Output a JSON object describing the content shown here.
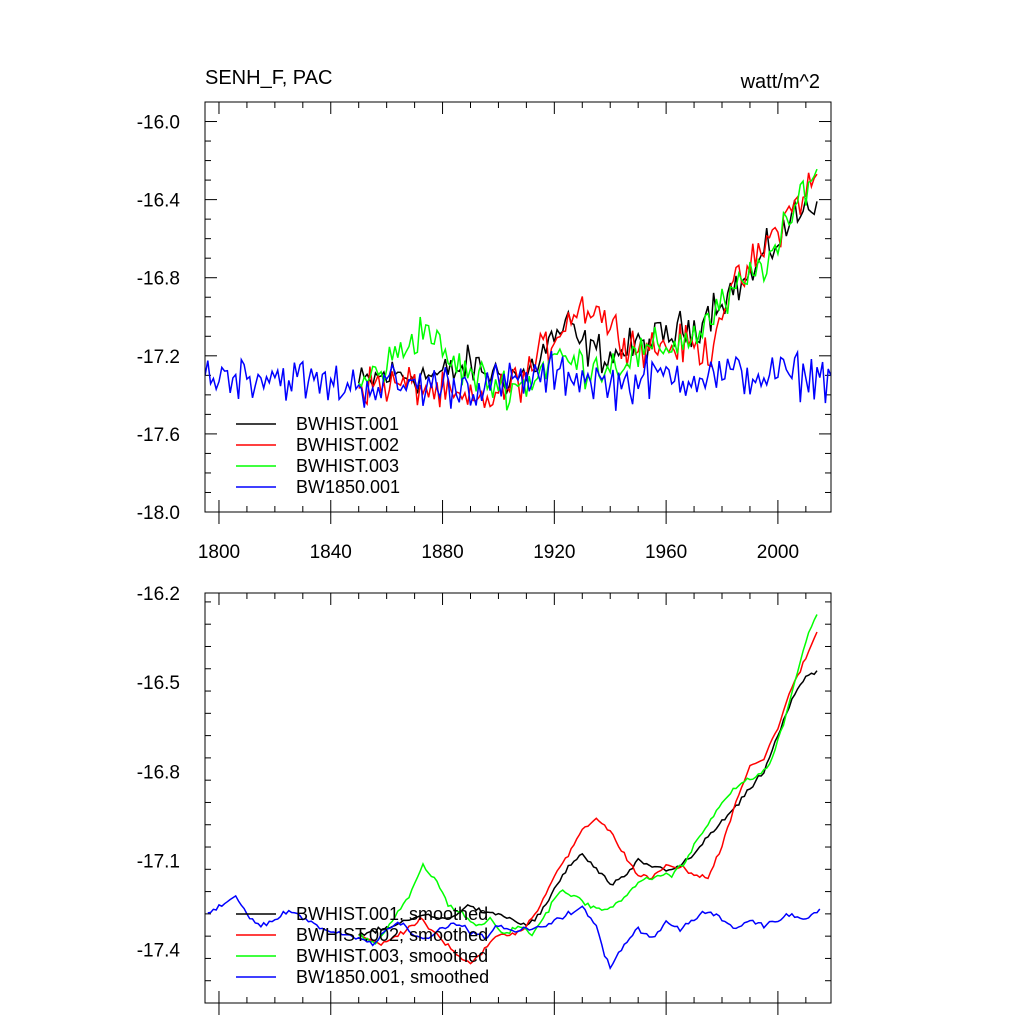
{
  "chart_data": [
    {
      "type": "line",
      "title": "SENH_F, PAC",
      "unit_label": "watt/m^2",
      "xlim": [
        1795,
        2019
      ],
      "ylim": [
        -18.0,
        -15.9
      ],
      "x_ticks": [
        1800,
        1840,
        1880,
        1920,
        1960,
        2000
      ],
      "y_ticks": [
        -16.0,
        -16.4,
        -16.8,
        -17.2,
        -17.6,
        -18.0
      ],
      "y_tick_labels": [
        "-16.0",
        "-16.4",
        "-16.8",
        "-17.2",
        "-17.6",
        "-18.0"
      ],
      "x_tick_labels": [
        "1800",
        "1840",
        "1880",
        "1920",
        "1960",
        "2000"
      ],
      "legend_position": "bottom-left",
      "series": [
        {
          "name": "BWHIST.001",
          "color": "#000000",
          "x_range": [
            1850,
            2014
          ],
          "points": [
            [
              1850,
              -17.35
            ],
            [
              1860,
              -17.3
            ],
            [
              1870,
              -17.3
            ],
            [
              1880,
              -17.3
            ],
            [
              1890,
              -17.25
            ],
            [
              1900,
              -17.3
            ],
            [
              1910,
              -17.3
            ],
            [
              1920,
              -17.1
            ],
            [
              1925,
              -17.05
            ],
            [
              1930,
              -17.15
            ],
            [
              1940,
              -17.2
            ],
            [
              1950,
              -17.15
            ],
            [
              1960,
              -17.1
            ],
            [
              1970,
              -17.05
            ],
            [
              1980,
              -16.9
            ],
            [
              1990,
              -16.8
            ],
            [
              2000,
              -16.6
            ],
            [
              2005,
              -16.5
            ],
            [
              2010,
              -16.45
            ],
            [
              2014,
              -16.4
            ]
          ]
        },
        {
          "name": "BWHIST.002",
          "color": "#ff0000",
          "x_range": [
            1850,
            2014
          ],
          "points": [
            [
              1850,
              -17.35
            ],
            [
              1860,
              -17.35
            ],
            [
              1870,
              -17.35
            ],
            [
              1880,
              -17.4
            ],
            [
              1890,
              -17.45
            ],
            [
              1900,
              -17.4
            ],
            [
              1910,
              -17.3
            ],
            [
              1920,
              -17.1
            ],
            [
              1925,
              -17.0
            ],
            [
              1930,
              -16.95
            ],
            [
              1935,
              -16.95
            ],
            [
              1940,
              -17.05
            ],
            [
              1950,
              -17.15
            ],
            [
              1960,
              -17.15
            ],
            [
              1970,
              -17.15
            ],
            [
              1975,
              -17.2
            ],
            [
              1980,
              -16.95
            ],
            [
              1990,
              -16.75
            ],
            [
              2000,
              -16.55
            ],
            [
              2005,
              -16.45
            ],
            [
              2010,
              -16.35
            ],
            [
              2014,
              -16.3
            ]
          ]
        },
        {
          "name": "BWHIST.003",
          "color": "#00ff00",
          "x_range": [
            1850,
            2014
          ],
          "points": [
            [
              1850,
              -17.35
            ],
            [
              1860,
              -17.25
            ],
            [
              1870,
              -17.1
            ],
            [
              1875,
              -17.05
            ],
            [
              1880,
              -17.2
            ],
            [
              1890,
              -17.3
            ],
            [
              1900,
              -17.35
            ],
            [
              1910,
              -17.35
            ],
            [
              1920,
              -17.2
            ],
            [
              1930,
              -17.25
            ],
            [
              1940,
              -17.25
            ],
            [
              1950,
              -17.2
            ],
            [
              1960,
              -17.15
            ],
            [
              1970,
              -17.1
            ],
            [
              1980,
              -16.95
            ],
            [
              1990,
              -16.8
            ],
            [
              2000,
              -16.65
            ],
            [
              2005,
              -16.5
            ],
            [
              2010,
              -16.3
            ],
            [
              2014,
              -16.25
            ]
          ]
        },
        {
          "name": "BW1850.001",
          "color": "#0000ff",
          "x_range": [
            1795,
            2019
          ],
          "points": [
            [
              1795,
              -17.3
            ],
            [
              1820,
              -17.3
            ],
            [
              1840,
              -17.35
            ],
            [
              1860,
              -17.35
            ],
            [
              1880,
              -17.35
            ],
            [
              1900,
              -17.35
            ],
            [
              1920,
              -17.3
            ],
            [
              1930,
              -17.3
            ],
            [
              1940,
              -17.35
            ],
            [
              1960,
              -17.3
            ],
            [
              1980,
              -17.3
            ],
            [
              2000,
              -17.3
            ],
            [
              2019,
              -17.3
            ]
          ]
        }
      ]
    },
    {
      "type": "line",
      "xlim": [
        1795,
        2019
      ],
      "ylim": [
        -17.58,
        -16.2
      ],
      "x_ticks": [
        1800,
        1840,
        1880,
        1920,
        1960,
        2000
      ],
      "y_ticks": [
        -16.2,
        -16.5,
        -16.8,
        -17.1,
        -17.4
      ],
      "y_tick_labels": [
        "-16.2",
        "-16.5",
        "-16.8",
        "-17.1",
        "-17.4"
      ],
      "legend_position": "bottom-left",
      "series": [
        {
          "name": "BWHIST.001, smoothed",
          "color": "#000000",
          "points": [
            [
              1850,
              -17.35
            ],
            [
              1860,
              -17.33
            ],
            [
              1868,
              -17.3
            ],
            [
              1875,
              -17.28
            ],
            [
              1880,
              -17.3
            ],
            [
              1885,
              -17.28
            ],
            [
              1890,
              -17.25
            ],
            [
              1895,
              -17.28
            ],
            [
              1900,
              -17.28
            ],
            [
              1905,
              -17.3
            ],
            [
              1910,
              -17.32
            ],
            [
              1915,
              -17.28
            ],
            [
              1920,
              -17.2
            ],
            [
              1925,
              -17.12
            ],
            [
              1930,
              -17.08
            ],
            [
              1935,
              -17.13
            ],
            [
              1940,
              -17.18
            ],
            [
              1945,
              -17.16
            ],
            [
              1950,
              -17.1
            ],
            [
              1955,
              -17.12
            ],
            [
              1960,
              -17.13
            ],
            [
              1965,
              -17.12
            ],
            [
              1970,
              -17.08
            ],
            [
              1975,
              -17.02
            ],
            [
              1980,
              -16.97
            ],
            [
              1985,
              -16.92
            ],
            [
              1990,
              -16.86
            ],
            [
              1995,
              -16.8
            ],
            [
              2000,
              -16.68
            ],
            [
              2005,
              -16.56
            ],
            [
              2010,
              -16.48
            ],
            [
              2014,
              -16.47
            ]
          ]
        },
        {
          "name": "BWHIST.002, smoothed",
          "color": "#ff0000",
          "points": [
            [
              1850,
              -17.35
            ],
            [
              1858,
              -17.38
            ],
            [
              1865,
              -17.35
            ],
            [
              1872,
              -17.3
            ],
            [
              1878,
              -17.35
            ],
            [
              1885,
              -17.42
            ],
            [
              1890,
              -17.45
            ],
            [
              1895,
              -17.4
            ],
            [
              1900,
              -17.35
            ],
            [
              1905,
              -17.35
            ],
            [
              1910,
              -17.32
            ],
            [
              1915,
              -17.25
            ],
            [
              1920,
              -17.15
            ],
            [
              1925,
              -17.08
            ],
            [
              1930,
              -17.0
            ],
            [
              1935,
              -16.96
            ],
            [
              1940,
              -17.0
            ],
            [
              1945,
              -17.08
            ],
            [
              1950,
              -17.15
            ],
            [
              1955,
              -17.16
            ],
            [
              1960,
              -17.12
            ],
            [
              1965,
              -17.12
            ],
            [
              1970,
              -17.15
            ],
            [
              1975,
              -17.16
            ],
            [
              1980,
              -17.05
            ],
            [
              1985,
              -16.9
            ],
            [
              1990,
              -16.78
            ],
            [
              1995,
              -16.76
            ],
            [
              2000,
              -16.65
            ],
            [
              2005,
              -16.52
            ],
            [
              2010,
              -16.42
            ],
            [
              2014,
              -16.33
            ]
          ]
        },
        {
          "name": "BWHIST.003, smoothed",
          "color": "#00ff00",
          "points": [
            [
              1850,
              -17.35
            ],
            [
              1856,
              -17.38
            ],
            [
              1862,
              -17.3
            ],
            [
              1868,
              -17.22
            ],
            [
              1873,
              -17.12
            ],
            [
              1878,
              -17.17
            ],
            [
              1882,
              -17.25
            ],
            [
              1887,
              -17.28
            ],
            [
              1892,
              -17.32
            ],
            [
              1897,
              -17.3
            ],
            [
              1902,
              -17.35
            ],
            [
              1907,
              -17.32
            ],
            [
              1912,
              -17.35
            ],
            [
              1917,
              -17.28
            ],
            [
              1922,
              -17.2
            ],
            [
              1927,
              -17.22
            ],
            [
              1932,
              -17.25
            ],
            [
              1937,
              -17.27
            ],
            [
              1942,
              -17.25
            ],
            [
              1947,
              -17.2
            ],
            [
              1952,
              -17.17
            ],
            [
              1957,
              -17.15
            ],
            [
              1962,
              -17.15
            ],
            [
              1967,
              -17.1
            ],
            [
              1972,
              -17.02
            ],
            [
              1977,
              -16.95
            ],
            [
              1982,
              -16.88
            ],
            [
              1987,
              -16.84
            ],
            [
              1992,
              -16.82
            ],
            [
              1997,
              -16.78
            ],
            [
              2002,
              -16.64
            ],
            [
              2007,
              -16.47
            ],
            [
              2011,
              -16.33
            ],
            [
              2014,
              -16.27
            ]
          ]
        },
        {
          "name": "BW1850.001, smoothed",
          "color": "#0000ff",
          "points": [
            [
              1796,
              -17.28
            ],
            [
              1800,
              -17.26
            ],
            [
              1806,
              -17.22
            ],
            [
              1810,
              -17.28
            ],
            [
              1815,
              -17.32
            ],
            [
              1820,
              -17.3
            ],
            [
              1825,
              -17.27
            ],
            [
              1830,
              -17.29
            ],
            [
              1835,
              -17.32
            ],
            [
              1840,
              -17.34
            ],
            [
              1845,
              -17.35
            ],
            [
              1850,
              -17.36
            ],
            [
              1855,
              -17.38
            ],
            [
              1860,
              -17.33
            ],
            [
              1865,
              -17.31
            ],
            [
              1870,
              -17.35
            ],
            [
              1875,
              -17.36
            ],
            [
              1880,
              -17.33
            ],
            [
              1885,
              -17.31
            ],
            [
              1890,
              -17.34
            ],
            [
              1895,
              -17.36
            ],
            [
              1900,
              -17.32
            ],
            [
              1905,
              -17.34
            ],
            [
              1910,
              -17.33
            ],
            [
              1915,
              -17.33
            ],
            [
              1920,
              -17.3
            ],
            [
              1925,
              -17.28
            ],
            [
              1930,
              -17.26
            ],
            [
              1935,
              -17.32
            ],
            [
              1938,
              -17.42
            ],
            [
              1940,
              -17.46
            ],
            [
              1945,
              -17.38
            ],
            [
              1950,
              -17.33
            ],
            [
              1955,
              -17.36
            ],
            [
              1960,
              -17.31
            ],
            [
              1965,
              -17.33
            ],
            [
              1970,
              -17.3
            ],
            [
              1975,
              -17.27
            ],
            [
              1980,
              -17.3
            ],
            [
              1985,
              -17.33
            ],
            [
              1990,
              -17.3
            ],
            [
              1995,
              -17.32
            ],
            [
              2000,
              -17.3
            ],
            [
              2005,
              -17.28
            ],
            [
              2010,
              -17.3
            ],
            [
              2015,
              -17.26
            ]
          ]
        }
      ]
    }
  ]
}
